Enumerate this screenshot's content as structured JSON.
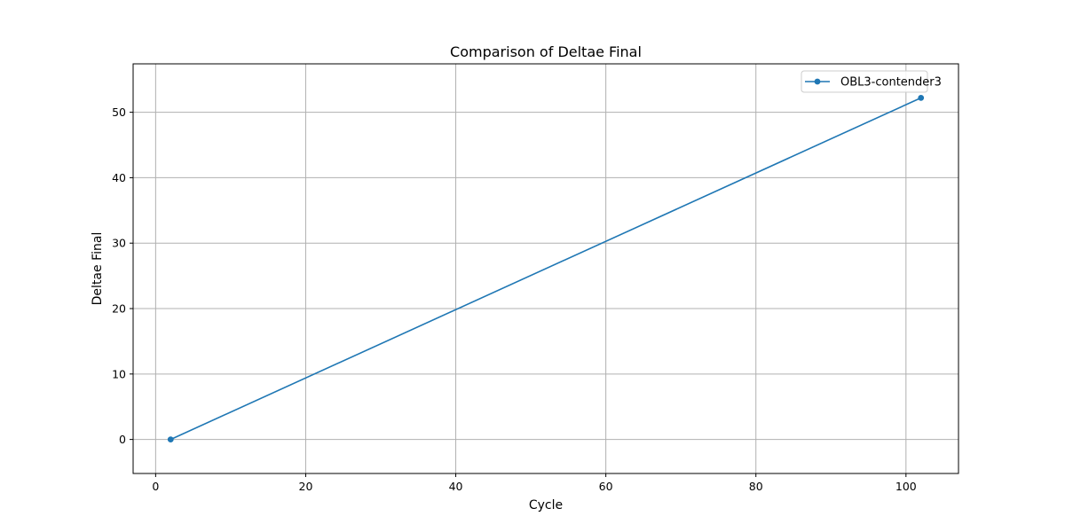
{
  "chart_data": {
    "type": "line",
    "title": "Comparison of Deltae Final",
    "xlabel": "Cycle",
    "ylabel": "Deltae Final",
    "xlim": [
      -3,
      107
    ],
    "ylim": [
      -5.2,
      57.4
    ],
    "xticks": [
      0,
      20,
      40,
      60,
      80,
      100
    ],
    "yticks": [
      0,
      10,
      20,
      30,
      40,
      50
    ],
    "grid": true,
    "legend_position": "top-right",
    "series": [
      {
        "name": "OBL3-contender3",
        "color": "#1f77b4",
        "marker": "circle",
        "x": [
          2,
          102
        ],
        "y": [
          0,
          52.2
        ]
      }
    ]
  }
}
